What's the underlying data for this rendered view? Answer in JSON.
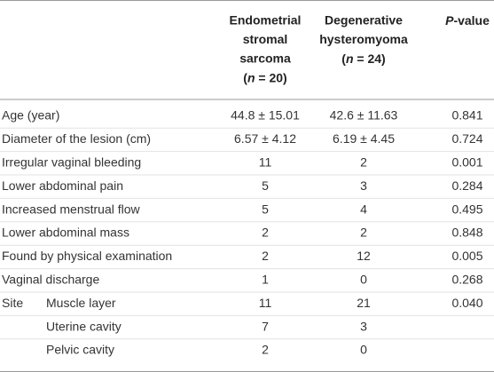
{
  "table": {
    "columns": [
      {
        "title_lines": [
          "Endometrial",
          "stromal",
          "sarcoma"
        ],
        "sample": [
          "(",
          "n",
          " = 20)"
        ]
      },
      {
        "title_lines": [
          "Degenerative",
          "hysteromyoma"
        ],
        "sample": [
          "(",
          "n",
          " = 24)"
        ]
      },
      {
        "title_parts": [
          "P",
          "-value"
        ]
      }
    ],
    "rows": [
      {
        "label": "Age (year)",
        "cells": [
          "44.8 ± 15.01",
          "42.6 ± 11.63",
          "0.841"
        ]
      },
      {
        "label": "Diameter of the lesion (cm)",
        "cells": [
          "6.57 ± 4.12",
          "6.19 ± 4.45",
          "0.724"
        ]
      },
      {
        "label": "Irregular vaginal bleeding",
        "cells": [
          "11",
          "2",
          "0.001"
        ]
      },
      {
        "label": "Lower abdominal pain",
        "cells": [
          "5",
          "3",
          "0.284"
        ]
      },
      {
        "label": "Increased menstrual flow",
        "cells": [
          "5",
          "4",
          "0.495"
        ]
      },
      {
        "label": "Lower abdominal mass",
        "cells": [
          "2",
          "2",
          "0.848"
        ]
      },
      {
        "label": "Found by physical examination",
        "cells": [
          "2",
          "12",
          "0.005"
        ]
      },
      {
        "label": "Vaginal discharge",
        "cells": [
          "1",
          "0",
          "0.268"
        ]
      },
      {
        "label": "Site",
        "sublabel": "Muscle layer",
        "cells": [
          "11",
          "21",
          "0.040"
        ]
      },
      {
        "sublabel": "Uterine cavity",
        "cells": [
          "7",
          "3"
        ]
      },
      {
        "sublabel": "Pelvic cavity",
        "cells": [
          "2",
          "0"
        ]
      }
    ]
  }
}
